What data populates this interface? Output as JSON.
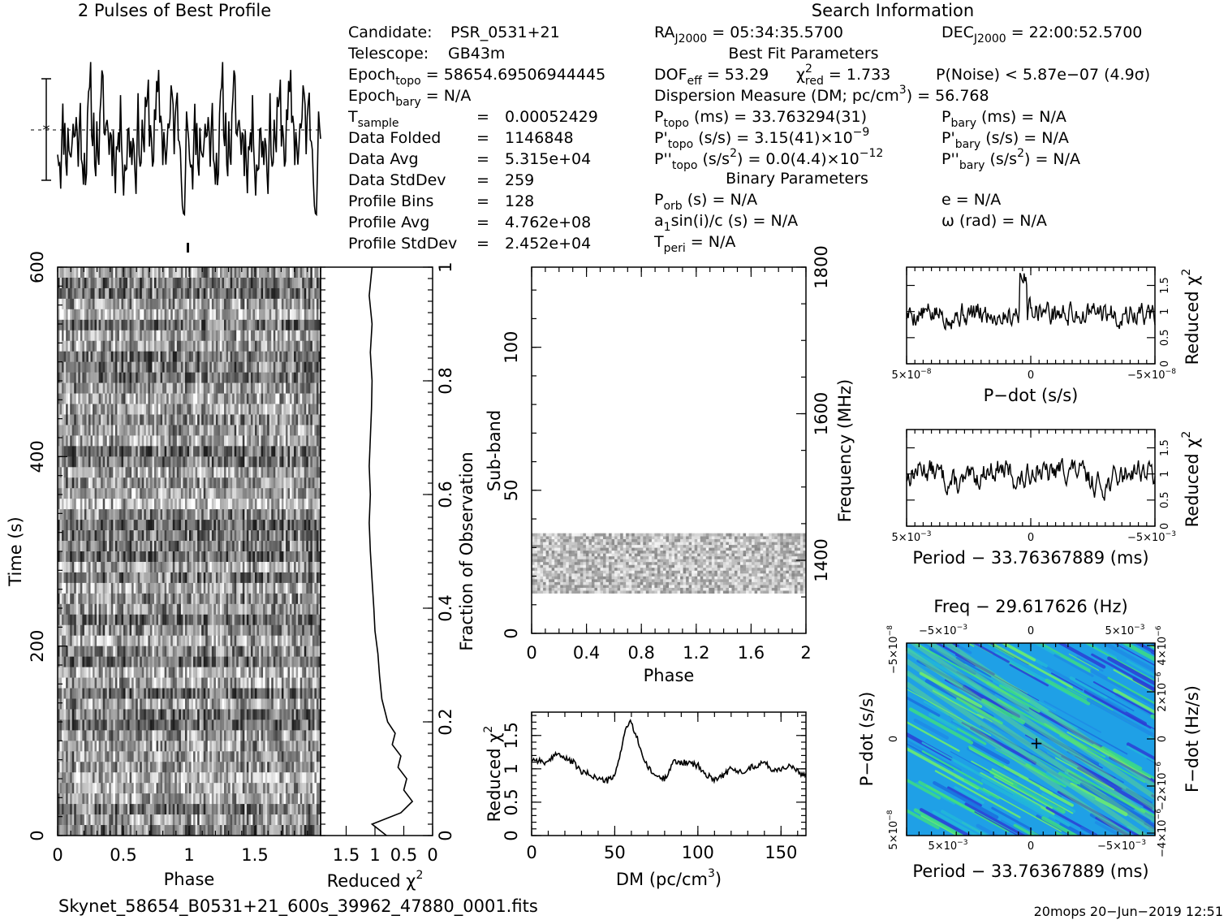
{
  "chart_data": [
    {
      "id": "best-profile",
      "type": "line",
      "title": "2 Pulses of Best Profile",
      "xlim": [
        0,
        2
      ],
      "num_points": 256,
      "xlabel": "",
      "ylabel": ""
    },
    {
      "id": "time-phase",
      "type": "heatmap",
      "xlabel": "Phase",
      "ylabel": "Time (s)",
      "xlim": [
        0,
        2
      ],
      "ylim": [
        0,
        600
      ],
      "x_ticks": [
        "0",
        "0.5",
        "1",
        "1.5"
      ],
      "y_ticks": [
        "0",
        "200",
        "400",
        "600"
      ],
      "colormap": "grayscale"
    },
    {
      "id": "time-chi2",
      "type": "line",
      "xlabel": "Reduced χ",
      "xlabel_sup": "2",
      "x_ticks": [
        "1.5",
        "1",
        "0.5",
        "0"
      ],
      "y2label": "Fraction of Observation",
      "y2_ticks": [
        "0",
        "0.2",
        "0.4",
        "0.6",
        "0.8",
        "1"
      ],
      "profile": [
        [
          0.0,
          0.8
        ],
        [
          0.02,
          1.05
        ],
        [
          0.04,
          0.55
        ],
        [
          0.06,
          0.35
        ],
        [
          0.08,
          0.5
        ],
        [
          0.1,
          0.45
        ],
        [
          0.12,
          0.6
        ],
        [
          0.14,
          0.55
        ],
        [
          0.16,
          0.7
        ],
        [
          0.18,
          0.65
        ],
        [
          0.2,
          0.78
        ],
        [
          0.24,
          0.88
        ],
        [
          0.28,
          0.92
        ],
        [
          0.32,
          0.95
        ],
        [
          0.36,
          1.0
        ],
        [
          0.4,
          1.02
        ],
        [
          0.45,
          1.05
        ],
        [
          0.5,
          1.08
        ],
        [
          0.55,
          1.1
        ],
        [
          0.6,
          1.08
        ],
        [
          0.65,
          1.1
        ],
        [
          0.7,
          1.08
        ],
        [
          0.75,
          1.06
        ],
        [
          0.8,
          1.05
        ],
        [
          0.85,
          1.08
        ],
        [
          0.9,
          1.05
        ],
        [
          0.95,
          1.1
        ],
        [
          1.0,
          1.05
        ]
      ]
    },
    {
      "id": "subband-phase",
      "type": "heatmap",
      "xlabel": "Phase",
      "ylabel": "Sub-band",
      "y2label": "Frequency (MHz)",
      "xlim": [
        0,
        2
      ],
      "ylim": [
        0,
        128
      ],
      "x_ticks": [
        "0",
        "0.4",
        "0.8",
        "1.2",
        "1.6",
        "2"
      ],
      "y_ticks": [
        "0",
        "50",
        "100"
      ],
      "y2_ticks": [
        "1400",
        "1600",
        "1800"
      ],
      "band_rows": [
        14,
        35
      ],
      "colormap": "grayscale"
    },
    {
      "id": "dm-chi2",
      "type": "line",
      "xlabel": "DM (pc/cm",
      "xlabel_sup": "3",
      "xlabel_tail": ")",
      "ylabel": "Reduced χ",
      "ylabel_sup": "2",
      "xlim": [
        0,
        165
      ],
      "ylim": [
        0,
        1.85
      ],
      "x_ticks": [
        "0",
        "50",
        "100",
        "150"
      ],
      "y_ticks": [
        "0",
        "0.5",
        "1",
        "1.5"
      ],
      "curve": [
        [
          0,
          1.15
        ],
        [
          5,
          1.12
        ],
        [
          10,
          1.08
        ],
        [
          15,
          1.25
        ],
        [
          20,
          1.15
        ],
        [
          25,
          1.1
        ],
        [
          30,
          0.95
        ],
        [
          35,
          0.92
        ],
        [
          40,
          0.85
        ],
        [
          45,
          0.82
        ],
        [
          50,
          0.88
        ],
        [
          53,
          1.2
        ],
        [
          56,
          1.55
        ],
        [
          59,
          1.72
        ],
        [
          62,
          1.55
        ],
        [
          65,
          1.35
        ],
        [
          68,
          1.1
        ],
        [
          72,
          0.95
        ],
        [
          76,
          0.88
        ],
        [
          80,
          0.85
        ],
        [
          85,
          1.1
        ],
        [
          90,
          1.1
        ],
        [
          95,
          1.08
        ],
        [
          100,
          1.05
        ],
        [
          105,
          0.9
        ],
        [
          110,
          0.85
        ],
        [
          115,
          0.9
        ],
        [
          120,
          1.0
        ],
        [
          125,
          0.95
        ],
        [
          130,
          1.0
        ],
        [
          135,
          1.05
        ],
        [
          140,
          1.1
        ],
        [
          145,
          0.98
        ],
        [
          150,
          1.0
        ],
        [
          155,
          1.05
        ],
        [
          160,
          0.95
        ],
        [
          165,
          0.9
        ]
      ]
    },
    {
      "id": "pdot-chi2",
      "type": "line",
      "xlabel": "P−dot (s/s)",
      "ylabel": "Reduced χ",
      "ylabel_sup": "2",
      "x_ticks": [
        {
          "base": "5×10",
          "sup": "−8"
        },
        {
          "base": "0",
          "sup": ""
        },
        {
          "base": "−5×10",
          "sup": "−8"
        }
      ],
      "y_ticks": [
        "0",
        "0.5",
        "1",
        "1.5"
      ],
      "ylim": [
        0,
        1.85
      ]
    },
    {
      "id": "period-chi2",
      "type": "line",
      "xlabel": "Period − 33.76367889 (ms)",
      "ylabel": "Reduced χ",
      "ylabel_sup": "2",
      "x_ticks": [
        {
          "base": "5×10",
          "sup": "−3"
        },
        {
          "base": "0",
          "sup": ""
        },
        {
          "base": "−5×10",
          "sup": "−3"
        }
      ],
      "y_ticks": [
        "0",
        "0.5",
        "1",
        "1.5"
      ],
      "ylim": [
        0,
        1.85
      ]
    },
    {
      "id": "p-pdot",
      "type": "heatmap",
      "title": "Freq − 29.617626 (Hz)",
      "xlabel": "Period − 33.76367889 (ms)",
      "ylabel": "P−dot (s/s)",
      "y2label": "F−dot (Hz/s)",
      "x_ticks": [
        {
          "base": "5×10",
          "sup": "−3"
        },
        {
          "base": "0",
          "sup": ""
        },
        {
          "base": "−5×10",
          "sup": "−3"
        }
      ],
      "top_ticks": [
        {
          "base": "−5×10",
          "sup": "−3"
        },
        {
          "base": "0",
          "sup": ""
        },
        {
          "base": "5×10",
          "sup": "−3"
        }
      ],
      "y_ticks": [
        {
          "base": "5×10",
          "sup": "−8"
        },
        {
          "base": "0",
          "sup": ""
        },
        {
          "base": "−5×10",
          "sup": "−8"
        }
      ],
      "y2_ticks": [
        {
          "base": "−4×10",
          "sup": "−6"
        },
        {
          "base": "−2×10",
          "sup": "−6"
        },
        {
          "base": "0",
          "sup": ""
        },
        {
          "base": "2×10",
          "sup": "−6"
        },
        {
          "base": "4×10",
          "sup": "−6"
        }
      ],
      "colormap": "blue-green",
      "best_marker": [
        0,
        0
      ]
    }
  ],
  "info": {
    "heading": "Search Information",
    "candidate_label": "Candidate:",
    "candidate_value": "PSR_0531+21",
    "telescope_label": "Telescope:",
    "telescope_value": "GB43m",
    "epoch_topo_label": "Epoch",
    "epoch_topo_sub": "topo",
    "epoch_topo_value": " = 58654.69506944445",
    "epoch_bary_label": "Epoch",
    "epoch_bary_sub": "bary",
    "epoch_bary_value": " = N/A",
    "left_table": [
      {
        "label": "T",
        "sub": "sample",
        "eq": "=",
        "value": "0.00052429"
      },
      {
        "label": "Data Folded",
        "sub": "",
        "eq": "=",
        "value": "1146848"
      },
      {
        "label": "Data Avg",
        "sub": "",
        "eq": "=",
        "value": "5.315e+04"
      },
      {
        "label": "Data StdDev",
        "sub": "",
        "eq": "=",
        "value": "259"
      },
      {
        "label": "Profile Bins",
        "sub": "",
        "eq": "=",
        "value": "128"
      },
      {
        "label": "Profile Avg",
        "sub": "",
        "eq": "=",
        "value": "4.762e+08"
      },
      {
        "label": "Profile StdDev",
        "sub": "",
        "eq": "=",
        "value": "2.452e+04"
      }
    ],
    "ra_label": "RA",
    "ra_sub": "J2000",
    "ra_value": " = 05:34:35.5700",
    "dec_label": "DEC",
    "dec_sub": "J2000",
    "dec_value": " = 22:00:52.5700",
    "best_fit_heading": "Best Fit Parameters",
    "dof_label": "DOF",
    "dof_sub": "eff",
    "dof_value": " = 53.29",
    "chi_label": "χ",
    "chi_sup": "2",
    "chi_sub": "red",
    "chi_value": " = 1.733",
    "pnoise_text": "P(Noise) < 5.87e−07   (4.9σ)",
    "dm_text_a": "Dispersion Measure (DM; pc/cm",
    "dm_text_sup": "3",
    "dm_text_b": ") = 56.768",
    "ptopo_label": "P",
    "ptopo_sub": "topo",
    "ptopo_value": " (ms) =  33.763294(31)",
    "pbary_label": "P",
    "pbary_sub": "bary",
    "pbary_value": " (ms) = N/A",
    "pdtopo_label": "P'",
    "pdtopo_sub": "topo",
    "pdtopo_value": " (s/s) =  3.15(41)×10",
    "pdtopo_sup": "−9",
    "pdbary_label": "P'",
    "pdbary_sub": "bary",
    "pdbary_value": " (s/s) = N/A",
    "pddtopo_label": "P''",
    "pddtopo_sub": "topo",
    "pddtopo_value_a": " (s/s",
    "pddtopo_value_sup": "2",
    "pddtopo_value_b": ") = 0.0(4.4)×10",
    "pddtopo_sup2": "−12",
    "pddbary_label": "P''",
    "pddbary_sub": "bary",
    "pddbary_value_a": " (s/s",
    "pddbary_value_sup": "2",
    "pddbary_value_b": ") = N/A",
    "binary_heading": "Binary Parameters",
    "porb_label": "P",
    "porb_sub": "orb",
    "porb_value": " (s) = N/A",
    "e_text": "e = N/A",
    "a1_label": "a",
    "a1_sub": "1",
    "a1_value": "sin(i)/c (s) = N/A",
    "omega_text": "ω (rad) = N/A",
    "tperi_label": "T",
    "tperi_sub": "peri",
    "tperi_value": " = N/A"
  },
  "footer": {
    "filename": "Skynet_58654_B0531+21_600s_39962_47880_0001.fits",
    "stamp": "20mops 20−Jun−2019 12:51"
  }
}
